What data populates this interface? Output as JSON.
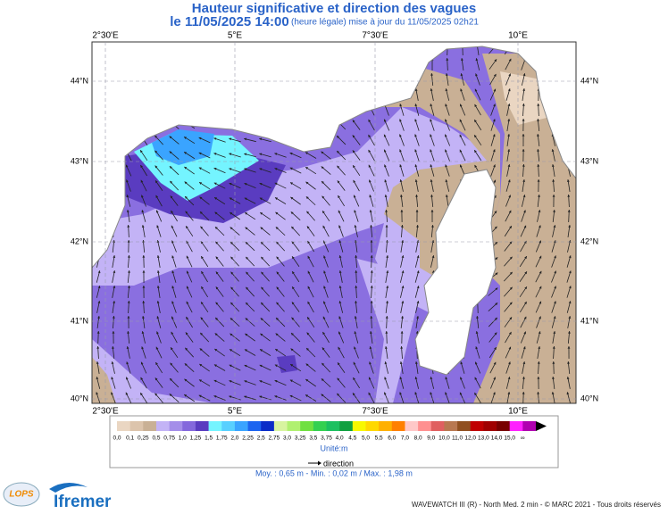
{
  "header": {
    "title": "Hauteur significative et direction des vagues",
    "date": "le 11/05/2025 14:00",
    "update": "(heure légale) mise à jour du 11/05/2025 02h21"
  },
  "map": {
    "lon_labels": [
      "2°30'E",
      "5°E",
      "7°30'E",
      "10°E"
    ],
    "lat_labels": [
      "44°N",
      "43°N",
      "42°N",
      "41°N",
      "40°N"
    ]
  },
  "colorbar": {
    "labels": [
      "0,0",
      "0,1",
      "0,25",
      "0,5",
      "0,75",
      "1,0",
      "1,25",
      "1,5",
      "1,75",
      "2,0",
      "2,25",
      "2,5",
      "2,75",
      "3,0",
      "3,25",
      "3,5",
      "3,75",
      "4,0",
      "4,5",
      "5,0",
      "5,5",
      "6,0",
      "7,0",
      "8,0",
      "9,0",
      "10,0",
      "11,0",
      "12,0",
      "13,0",
      "14,0",
      "15,0",
      "∞"
    ],
    "colors": [
      "#ead6c2",
      "#dcc4ac",
      "#c9b095",
      "#c3b3f6",
      "#a48ee9",
      "#8468dc",
      "#5a3cc0",
      "#74f4ff",
      "#58d0ff",
      "#3aa4ff",
      "#1c64f0",
      "#0a2cc8",
      "#d8f4a0",
      "#b0f070",
      "#70e040",
      "#34d050",
      "#1cc060",
      "#10a040",
      "#f8f800",
      "#ffd800",
      "#ffb000",
      "#ff8000",
      "#ffc8c8",
      "#ff9090",
      "#e06060",
      "#b87850",
      "#905020",
      "#c00000",
      "#a00000",
      "#780000",
      "#ff20ff",
      "#b000b0"
    ],
    "unit": "Unité:m"
  },
  "legend": {
    "direction": "direction"
  },
  "stats": "Moy. : 0,65 m  -  Min. : 0,02 m / Max. : 1,98 m",
  "footer": {
    "credit": "WAVEWATCH III (R) - North Med. 2 min - © MARC 2021 - Tous droits réservés",
    "lops": "LOPS",
    "ifremer": "Ifremer"
  }
}
